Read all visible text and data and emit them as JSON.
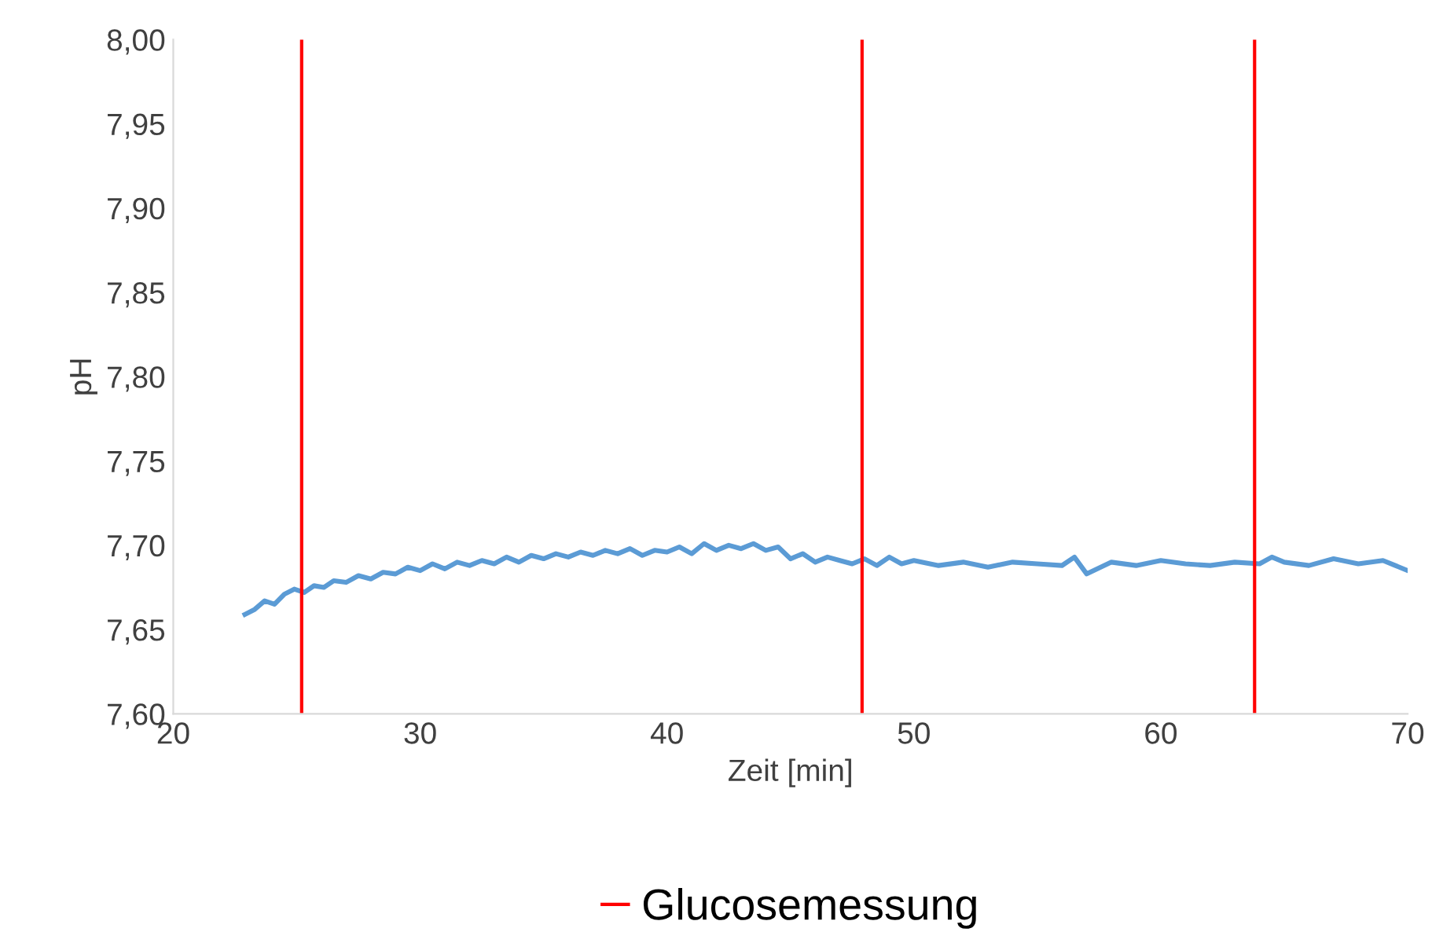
{
  "chart_data": {
    "type": "line",
    "xlabel": "Zeit [min]",
    "ylabel": "pH",
    "series": [
      {
        "color": "#5b9bd5",
        "x": [
          22.9,
          23.3,
          23.7,
          24.1,
          24.5,
          24.9,
          25.3,
          25.7,
          26.1,
          26.5,
          27,
          27.5,
          28,
          28.5,
          29,
          29.5,
          30,
          30.5,
          31,
          31.5,
          32,
          32.5,
          33,
          33.5,
          34,
          34.5,
          35,
          35.5,
          36,
          36.5,
          37,
          37.5,
          38,
          38.5,
          39,
          39.5,
          40,
          40.5,
          41,
          41.5,
          42,
          42.5,
          43,
          43.5,
          44,
          44.5,
          45,
          45.5,
          46,
          46.5,
          47,
          47.5,
          48,
          48.5,
          49,
          49.5,
          50,
          51,
          52,
          53,
          54,
          55,
          56,
          56.5,
          57,
          58,
          59,
          60,
          61,
          62,
          63,
          64,
          64.5,
          65,
          66,
          67,
          68,
          69,
          69.5,
          70
        ],
        "values": [
          7.659,
          7.662,
          7.667,
          7.665,
          7.671,
          7.674,
          7.672,
          7.676,
          7.675,
          7.679,
          7.678,
          7.682,
          7.68,
          7.684,
          7.683,
          7.687,
          7.685,
          7.689,
          7.686,
          7.69,
          7.688,
          7.691,
          7.689,
          7.693,
          7.69,
          7.694,
          7.692,
          7.695,
          7.693,
          7.696,
          7.694,
          7.697,
          7.695,
          7.698,
          7.694,
          7.697,
          7.696,
          7.699,
          7.695,
          7.701,
          7.697,
          7.7,
          7.698,
          7.701,
          7.697,
          7.699,
          7.692,
          7.695,
          7.69,
          7.693,
          7.691,
          7.689,
          7.692,
          7.688,
          7.693,
          7.689,
          7.691,
          7.688,
          7.69,
          7.687,
          7.69,
          7.689,
          7.688,
          7.693,
          7.683,
          7.69,
          7.688,
          7.691,
          7.689,
          7.688,
          7.69,
          7.689,
          7.693,
          7.69,
          7.688,
          7.692,
          7.689,
          7.691,
          7.688,
          7.685
        ]
      }
    ],
    "xlim": [
      20,
      70
    ],
    "xticks": [
      20,
      30,
      40,
      50,
      60,
      70
    ],
    "ylim": [
      7.6,
      8.0
    ],
    "yticks": [
      {
        "value": 7.6,
        "label": "7,60"
      },
      {
        "value": 7.65,
        "label": "7,65"
      },
      {
        "value": 7.7,
        "label": "7,70"
      },
      {
        "value": 7.75,
        "label": "7,75"
      },
      {
        "value": 7.8,
        "label": "7,80"
      },
      {
        "value": 7.85,
        "label": "7,85"
      },
      {
        "value": 7.9,
        "label": "7,90"
      },
      {
        "value": 7.95,
        "label": "7,95"
      },
      {
        "value": 8.0,
        "label": "8,00"
      }
    ],
    "ref_lines": [
      {
        "axis": "x",
        "value": 25.2,
        "label": "Glucosemessung",
        "color": "#ff0000"
      },
      {
        "axis": "x",
        "value": 47.9,
        "color": "#ff0000"
      },
      {
        "axis": "x",
        "value": 63.8,
        "color": "#ff0000"
      }
    ],
    "legend": "bottom",
    "marker": "none",
    "line_style": "solid",
    "grid": false
  }
}
